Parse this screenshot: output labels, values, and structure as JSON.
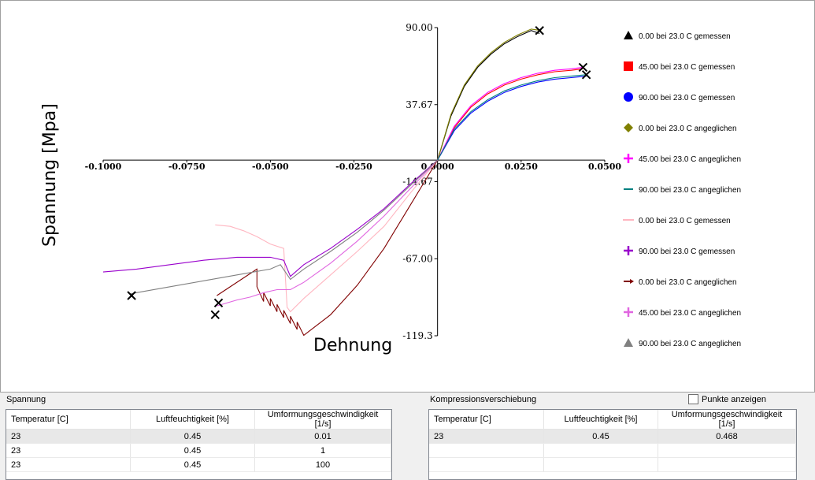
{
  "chart_data": {
    "type": "line",
    "xlabel": "Dehnung",
    "ylabel": "Spannung [Mpa]",
    "xlim": [
      -0.1,
      0.05
    ],
    "ylim": [
      -119.3,
      90.0
    ],
    "x_ticks": [
      -0.1,
      -0.075,
      -0.05,
      -0.025,
      0.0,
      0.025,
      0.05
    ],
    "x_tick_labels": [
      "-0.1000",
      "-0.0750",
      "-0.0500",
      "-0.0250",
      "0.0000",
      "0.0250",
      "0.0500"
    ],
    "y_ticks": [
      90.0,
      37.67,
      -14.67,
      -67.0,
      -119.3
    ],
    "y_tick_labels": [
      "90.00",
      "37.67",
      "-14.67",
      "-67.00",
      "-119.3"
    ],
    "series": [
      {
        "name": "0.00 bei 23.0 C gemessen",
        "color": "#000000",
        "marker": "triangle",
        "x": [
          0,
          0.004,
          0.008,
          0.012,
          0.016,
          0.02,
          0.024,
          0.028,
          0.0305
        ],
        "y": [
          0,
          30,
          50,
          63,
          72,
          79,
          84,
          88,
          86
        ]
      },
      {
        "name": "45.00 bei 23.0 C gemessen",
        "color": "#ff0000",
        "marker": "square",
        "x": [
          0,
          0.005,
          0.01,
          0.015,
          0.02,
          0.025,
          0.03,
          0.035,
          0.04,
          0.0435
        ],
        "y": [
          0,
          22,
          36,
          45,
          51,
          55,
          58,
          60,
          61,
          62
        ]
      },
      {
        "name": "90.00 bei 23.0 C gemessen",
        "color": "#0000ff",
        "marker": "circle",
        "x": [
          0,
          0.005,
          0.01,
          0.015,
          0.02,
          0.025,
          0.03,
          0.035,
          0.04,
          0.0445
        ],
        "y": [
          0,
          20,
          32,
          40,
          46,
          50,
          53,
          55,
          56,
          57
        ]
      },
      {
        "name": "0.00 bei 23.0 C angeglichen",
        "color": "#808000",
        "marker": "diamond",
        "x": [
          0,
          0.004,
          0.008,
          0.012,
          0.016,
          0.02,
          0.024,
          0.028,
          0.031
        ],
        "y": [
          0,
          31,
          51,
          64,
          73,
          80,
          85,
          89,
          88
        ]
      },
      {
        "name": "45.00 bei 23.0 C angeglichen",
        "color": "#ff00ff",
        "marker": "plus",
        "x": [
          0,
          0.005,
          0.01,
          0.015,
          0.02,
          0.025,
          0.03,
          0.035,
          0.04,
          0.0435
        ],
        "y": [
          0,
          23,
          37,
          46,
          52,
          56,
          59,
          61,
          62,
          63
        ]
      },
      {
        "name": "90.00 bei 23.0 C angeglichen",
        "color": "#008080",
        "marker": "dash",
        "x": [
          0,
          0.005,
          0.01,
          0.015,
          0.02,
          0.025,
          0.03,
          0.035,
          0.04,
          0.0445
        ],
        "y": [
          0,
          21,
          33,
          41,
          47,
          51,
          54,
          56,
          57,
          58
        ]
      },
      {
        "name": "0.00 bei 23.0 C gemessen",
        "color": "#ffb6c1",
        "marker": "line",
        "x": [
          0,
          -0.008,
          -0.016,
          -0.024,
          -0.032,
          -0.04,
          -0.044,
          -0.045,
          -0.046,
          -0.05,
          -0.054,
          -0.058,
          -0.062,
          -0.0665
        ],
        "y": [
          0,
          -22,
          -45,
          -62,
          -78,
          -94,
          -103,
          -100,
          -60,
          -57,
          -52,
          -48,
          -45,
          -44
        ]
      },
      {
        "name": "90.00 bei 23.0 C gemessen",
        "color": "#9900cc",
        "marker": "plus",
        "x": [
          0,
          -0.008,
          -0.016,
          -0.024,
          -0.032,
          -0.04,
          -0.044,
          -0.046,
          -0.05,
          -0.06,
          -0.07,
          -0.08,
          -0.09,
          -0.1
        ],
        "y": [
          0,
          -16,
          -33,
          -47,
          -60,
          -71,
          -79,
          -68,
          -66,
          -66,
          -68,
          -71,
          -74,
          -76
        ]
      },
      {
        "name": "0.00 bei 23.0 C angeglichen",
        "color": "#800000",
        "marker": "arrow",
        "x": [
          0,
          -0.008,
          -0.016,
          -0.024,
          -0.032,
          -0.04,
          -0.042,
          -0.042,
          -0.044,
          -0.044,
          -0.046,
          -0.046,
          -0.048,
          -0.048,
          -0.05,
          -0.05,
          -0.052,
          -0.052,
          -0.054,
          -0.054,
          -0.066
        ],
        "y": [
          0,
          -30,
          -60,
          -85,
          -105,
          -119,
          -110,
          -115,
          -106,
          -111,
          -102,
          -107,
          -98,
          -103,
          -94,
          -99,
          -90,
          -96,
          -86,
          -74,
          -92
        ]
      },
      {
        "name": "45.00 bei 23.0 C angeglichen",
        "color": "#e066e0",
        "marker": "plus",
        "x": [
          0,
          -0.008,
          -0.016,
          -0.024,
          -0.032,
          -0.04,
          -0.044,
          -0.048,
          -0.052,
          -0.056,
          -0.06,
          -0.066
        ],
        "y": [
          0,
          -19,
          -38,
          -55,
          -70,
          -83,
          -88,
          -88,
          -90,
          -93,
          -95,
          -99
        ]
      },
      {
        "name": "90.00 bei 23.0 C angeglichen",
        "color": "#808080",
        "marker": "triangle",
        "x": [
          0,
          -0.008,
          -0.016,
          -0.024,
          -0.032,
          -0.04,
          -0.044,
          -0.047,
          -0.05,
          -0.06,
          -0.07,
          -0.08,
          -0.09,
          -0.092
        ],
        "y": [
          0,
          -17,
          -34,
          -49,
          -62,
          -74,
          -81,
          -71,
          -74,
          -78,
          -82,
          -86,
          -90,
          -91
        ]
      }
    ],
    "end_markers": [
      {
        "x": 0.0305,
        "y": 88
      },
      {
        "x": 0.0435,
        "y": 63
      },
      {
        "x": 0.0445,
        "y": 58
      },
      {
        "x": -0.0915,
        "y": -92
      },
      {
        "x": -0.0655,
        "y": -97
      },
      {
        "x": -0.0665,
        "y": -105
      }
    ]
  },
  "panels": {
    "left": {
      "title": "Spannung",
      "headers": [
        "Temperatur [C]",
        "Luftfeuchtigkeit [%]",
        "Umformungsgeschwindigkeit [1/s]"
      ],
      "rows": [
        [
          "23",
          "0.45",
          "0.01"
        ],
        [
          "23",
          "0.45",
          "1"
        ],
        [
          "23",
          "0.45",
          "100"
        ]
      ]
    },
    "right": {
      "title": "Kompressionsverschiebung",
      "checkbox_label": "Punkte anzeigen",
      "headers": [
        "Temperatur [C]",
        "Luftfeuchtigkeit [%]",
        "Umformungsgeschwindigkeit [1/s]"
      ],
      "rows": [
        [
          "23",
          "0.45",
          "0.468"
        ]
      ]
    }
  }
}
